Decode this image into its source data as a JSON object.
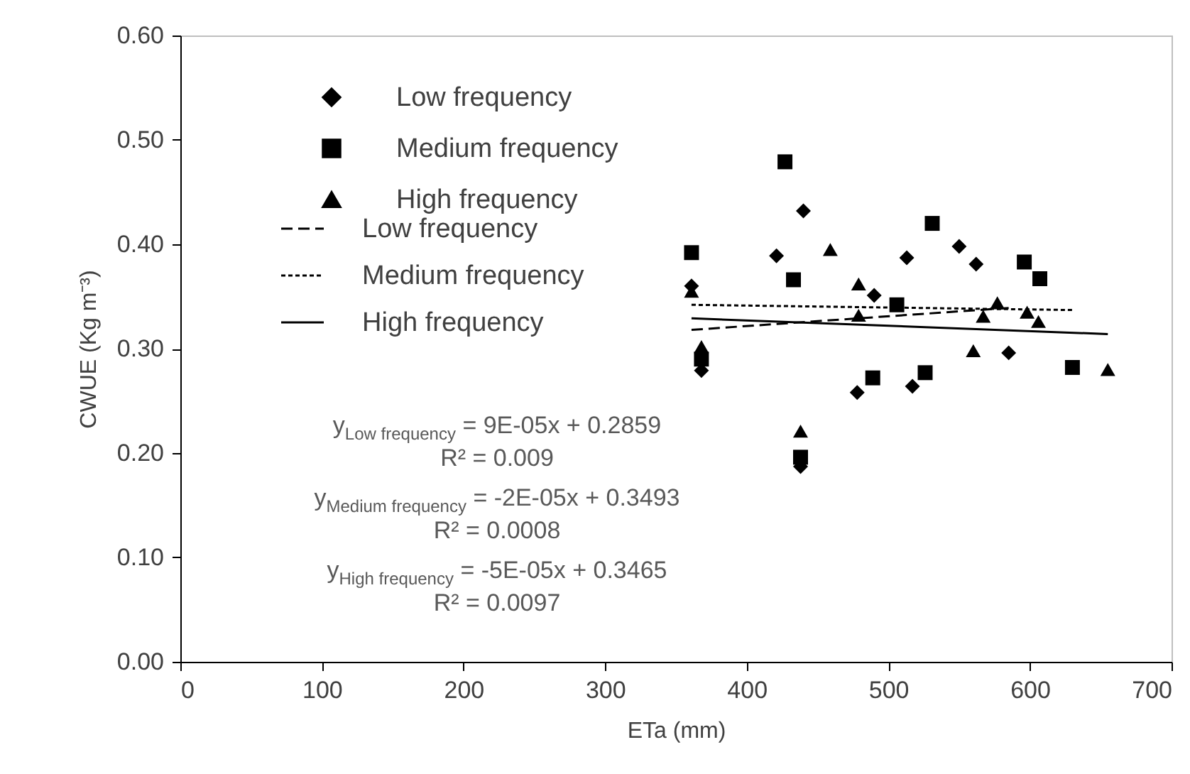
{
  "chart_data": {
    "type": "scatter",
    "xlabel": "ETa (mm)",
    "ylabel": "CWUE (Kg m⁻³)",
    "xlim": [
      0,
      700
    ],
    "xticks": [
      0,
      100,
      200,
      300,
      400,
      500,
      600,
      700
    ],
    "ylim": [
      0,
      0.6
    ],
    "yticks": [
      {
        "value": 0,
        "label": "0.00"
      },
      {
        "value": 0.1,
        "label": "0.10"
      },
      {
        "value": 0.2,
        "label": "0.20"
      },
      {
        "value": 0.3,
        "label": "0.30"
      },
      {
        "value": 0.4,
        "label": "0.40"
      },
      {
        "value": 0.5,
        "label": "0.50"
      },
      {
        "value": 0.6,
        "label": "0.60"
      }
    ],
    "legend": "top left",
    "series": [
      {
        "name": "Low frequency",
        "type": "scatter",
        "marker": "diamond",
        "color": "#000000",
        "x": [
          361,
          368,
          421,
          438,
          440,
          478,
          490,
          513,
          517,
          550,
          562,
          585
        ],
        "values": [
          0.36,
          0.279,
          0.389,
          0.187,
          0.432,
          0.258,
          0.351,
          0.387,
          0.264,
          0.398,
          0.381,
          0.296
        ]
      },
      {
        "name": "Medium frequency",
        "type": "scatter",
        "marker": "square",
        "color": "#000000",
        "x": [
          361,
          368,
          427,
          433,
          438,
          489,
          506,
          526,
          531,
          596,
          607,
          630
        ],
        "values": [
          0.392,
          0.29,
          0.479,
          0.366,
          0.196,
          0.272,
          0.342,
          0.277,
          0.42,
          0.383,
          0.367,
          0.282
        ]
      },
      {
        "name": "High frequency",
        "type": "scatter",
        "marker": "triangle",
        "color": "#000000",
        "x": [
          361,
          368,
          438,
          459,
          479,
          479,
          560,
          567,
          577,
          598,
          606,
          655
        ],
        "values": [
          0.355,
          0.302,
          0.221,
          0.395,
          0.362,
          0.332,
          0.298,
          0.331,
          0.344,
          0.335,
          0.326,
          0.28
        ]
      },
      {
        "name": "Low frequency",
        "type": "line",
        "line_style": "dashed",
        "color": "#000000",
        "x": [
          361,
          585
        ],
        "values": [
          0.318,
          0.339
        ]
      },
      {
        "name": "Medium frequency",
        "type": "line",
        "line_style": "dotted",
        "color": "#000000",
        "x": [
          361,
          630
        ],
        "values": [
          0.342,
          0.337
        ]
      },
      {
        "name": "High frequency",
        "type": "line",
        "line_style": "solid",
        "color": "#000000",
        "x": [
          361,
          655
        ],
        "values": [
          0.329,
          0.314
        ]
      }
    ],
    "annotations": [
      "y$_{Low frequency}$ = 9E-05x + 0.2859",
      "R² = 0.009",
      "y$_{Medium frequency}$ = -2E-05x + 0.3493",
      "R² = 0.0008",
      "y$_{High frequency}$ = -5E-05x + 0.3465",
      "R² = 0.0097"
    ]
  }
}
